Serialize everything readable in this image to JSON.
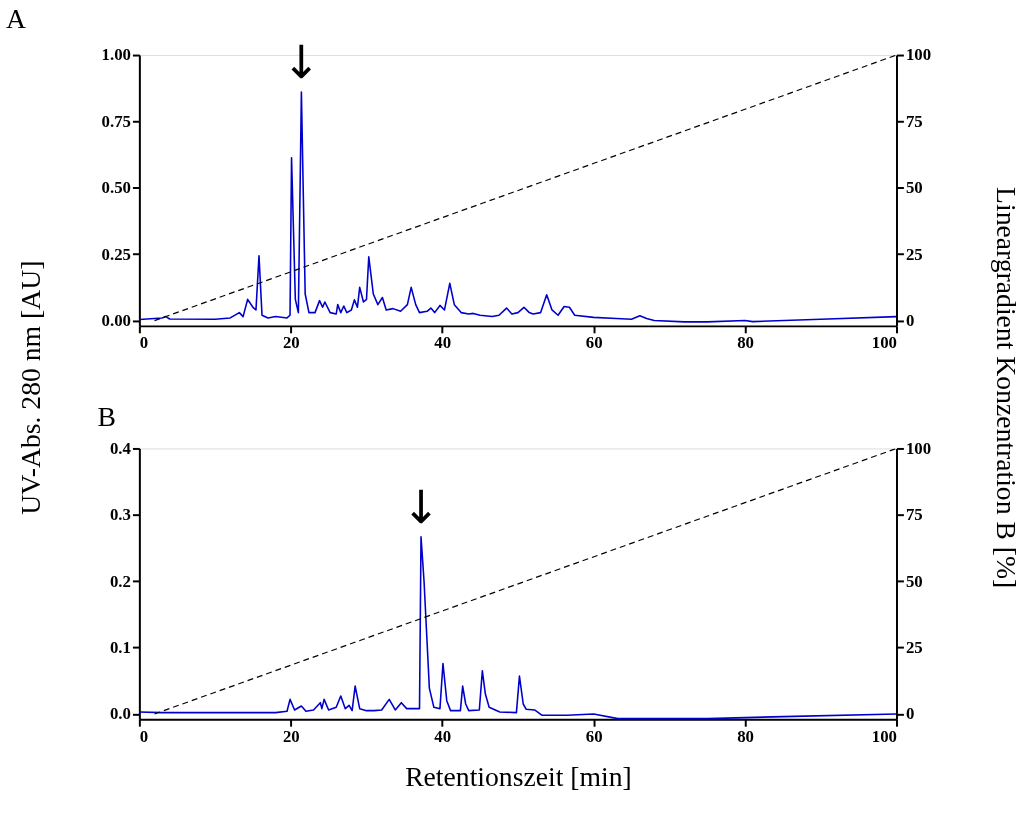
{
  "chart_data": [
    {
      "type": "line",
      "title": "A",
      "ylabel": "UV-Abs. 280 nm [AU]",
      "y2label": "Lineargradient Konzentration B [%]",
      "xlim": [
        0,
        100
      ],
      "xticks": [
        0,
        20,
        40,
        60,
        80,
        100
      ],
      "ylim": [
        -0.02,
        1
      ],
      "yticks": [
        {
          "value": 0,
          "label": "0.00"
        },
        0.25,
        {
          "value": 0.5,
          "label": "0.50"
        },
        0.75,
        {
          "value": 1,
          "label": "1.00"
        }
      ],
      "y2lim": [
        -2,
        100
      ],
      "y2ticks": [
        0,
        25,
        50,
        75,
        100
      ],
      "grid": false,
      "series": [
        {
          "color": "#0000cc",
          "line_style": "solid",
          "x": [
            0,
            3,
            3.5,
            4,
            10,
            12,
            13.2,
            13.7,
            14.3,
            15,
            15.4,
            15.8,
            16.2,
            17,
            18,
            19.5,
            19.9,
            20.1,
            20.6,
            21.0,
            21.4,
            21.9,
            22.4,
            23.2,
            23.8,
            24.2,
            24.5,
            25.2,
            26,
            26.2,
            26.6,
            27,
            27.4,
            28,
            28.4,
            28.8,
            29.1,
            29.6,
            30,
            30.3,
            30.9,
            31.5,
            32.1,
            32.6,
            33.5,
            34.5,
            35.4,
            35.9,
            36.5,
            37,
            38,
            38.5,
            39,
            39.7,
            40.3,
            41,
            41.6,
            42.5,
            43.5,
            44.1,
            45,
            46.6,
            47.5,
            48.5,
            49.2,
            50,
            50.8,
            51.5,
            52,
            53,
            53.8,
            54.5,
            55.3,
            56.1,
            56.8,
            57.5,
            60,
            63,
            65,
            66.1,
            67,
            68,
            72,
            75,
            80,
            81,
            90,
            100
          ],
          "values": [
            0.004,
            0.01,
            0.015,
            0.006,
            0.005,
            0.01,
            0.03,
            0.015,
            0.08,
            0.05,
            0.04,
            0.244,
            0.02,
            0.01,
            0.015,
            0.01,
            0.02,
            0.613,
            0.08,
            0.03,
            0.861,
            0.1,
            0.03,
            0.03,
            0.075,
            0.05,
            0.07,
            0.03,
            0.025,
            0.06,
            0.03,
            0.055,
            0.03,
            0.04,
            0.078,
            0.05,
            0.125,
            0.07,
            0.08,
            0.24,
            0.1,
            0.06,
            0.087,
            0.04,
            0.045,
            0.035,
            0.06,
            0.125,
            0.06,
            0.03,
            0.035,
            0.047,
            0.03,
            0.057,
            0.04,
            0.14,
            0.06,
            0.03,
            0.025,
            0.027,
            0.02,
            0.015,
            0.02,
            0.047,
            0.025,
            0.03,
            0.05,
            0.03,
            0.025,
            0.03,
            0.097,
            0.04,
            0.02,
            0.053,
            0.05,
            0.02,
            0.012,
            0.008,
            0.005,
            0.018,
            0.008,
            0.0,
            -0.005,
            -0.005,
            0.0,
            -0.004,
            0.005,
            0.015
          ]
        },
        {
          "color": "#000000",
          "line_style": "dashed",
          "axis": "y2",
          "x": [
            2,
            100
          ],
          "values": [
            0,
            100
          ]
        }
      ],
      "annotations": [
        {
          "text": "↓",
          "x": 21.4,
          "y": 0.861
        }
      ]
    },
    {
      "type": "line",
      "title": "B",
      "xlabel": "Retentionszeit [min]",
      "xlim": [
        0,
        100
      ],
      "xticks": [
        0,
        20,
        40,
        60,
        80,
        100
      ],
      "ylim": [
        -0.008,
        0.4
      ],
      "yticks": [
        {
          "value": 0,
          "label": "0.0"
        },
        0.1,
        0.2,
        0.3,
        0.4
      ],
      "y2lim": [
        -2,
        100
      ],
      "y2ticks": [
        0,
        25,
        50,
        75,
        100
      ],
      "grid": false,
      "series": [
        {
          "color": "#0000cc",
          "line_style": "solid",
          "x": [
            0,
            3,
            10,
            15,
            18,
            19.5,
            19.9,
            20.5,
            21.4,
            22,
            23,
            23.9,
            24.1,
            24.4,
            25,
            26,
            26.6,
            27.2,
            27.7,
            28.1,
            28.5,
            29.1,
            30,
            31,
            32,
            33,
            33.8,
            34.6,
            35.3,
            36,
            37,
            37.2,
            37.6,
            38.3,
            38.9,
            39.7,
            40.1,
            40.6,
            41.1,
            42.4,
            42.7,
            43.1,
            43.5,
            44.9,
            45.3,
            45.7,
            46.2,
            47.6,
            49.8,
            50.2,
            50.7,
            51.1,
            52.2,
            53.2,
            56.5,
            60,
            63.2,
            70,
            75,
            85,
            100
          ],
          "values": [
            0.003,
            0.002,
            0.002,
            0.002,
            0.002,
            0.004,
            0.022,
            0.006,
            0.012,
            0.004,
            0.006,
            0.017,
            0.008,
            0.022,
            0.006,
            0.01,
            0.027,
            0.008,
            0.013,
            0.005,
            0.042,
            0.008,
            0.005,
            0.005,
            0.006,
            0.022,
            0.006,
            0.017,
            0.008,
            0.008,
            0.008,
            0.267,
            0.2,
            0.039,
            0.01,
            0.008,
            0.076,
            0.02,
            0.005,
            0.005,
            0.042,
            0.015,
            0.005,
            0.006,
            0.065,
            0.03,
            0.01,
            0.003,
            0.002,
            0.057,
            0.015,
            0.007,
            0.006,
            -0.002,
            -0.002,
            0.0,
            -0.007,
            -0.007,
            -0.007,
            -0.004,
            0.0
          ]
        },
        {
          "color": "#000000",
          "line_style": "dashed",
          "axis": "y2",
          "x": [
            2,
            100
          ],
          "values": [
            0,
            100
          ]
        }
      ],
      "annotations": [
        {
          "text": "↓",
          "x": 37.2,
          "y": 0.267
        }
      ]
    }
  ]
}
